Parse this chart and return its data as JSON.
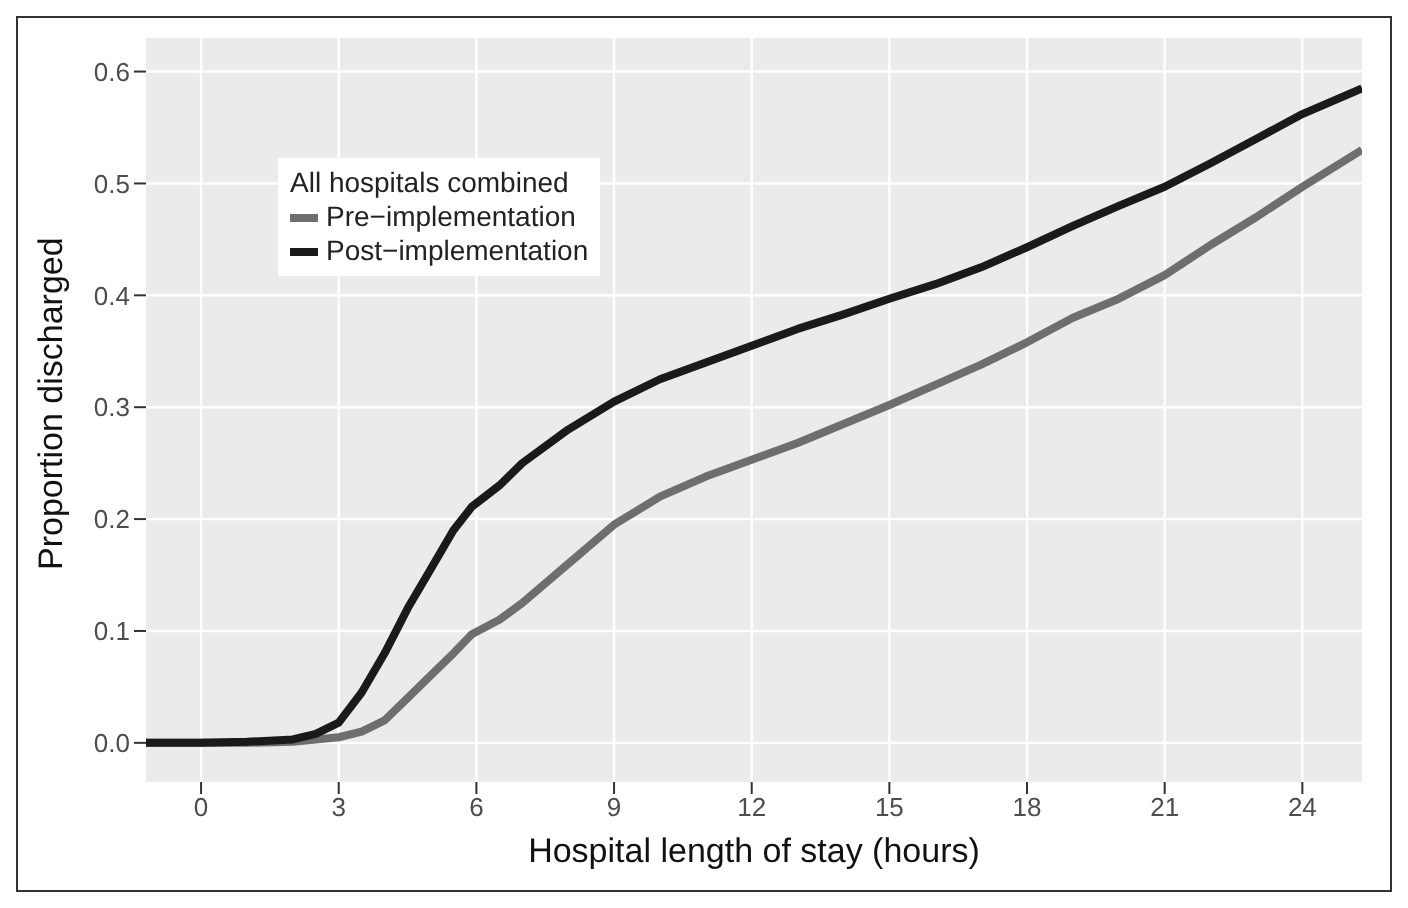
{
  "chart_data": {
    "type": "line",
    "xlabel": "Hospital length of stay (hours)",
    "ylabel": "Proportion discharged",
    "legend_title": "All hospitals combined",
    "legend": "top left",
    "grid": true,
    "marker": "none",
    "line_style": "solid",
    "xlim": [
      -1.2,
      25.3
    ],
    "xticks": [
      0,
      3,
      6,
      9,
      12,
      15,
      18,
      21,
      24
    ],
    "ylim": [
      -0.035,
      0.63
    ],
    "yticks": [
      {
        "value": 0,
        "label": "0.0"
      },
      {
        "value": 0.1,
        "label": "0.1"
      },
      {
        "value": 0.2,
        "label": "0.2"
      },
      {
        "value": 0.3,
        "label": "0.3"
      },
      {
        "value": 0.4,
        "label": "0.4"
      },
      {
        "value": 0.5,
        "label": "0.5"
      },
      {
        "value": 0.6,
        "label": "0.6"
      }
    ],
    "series": [
      {
        "name": "Pre−implementation",
        "color": "#6e6e6e",
        "x": [
          -1.2,
          0,
          1,
          2,
          3,
          3.5,
          4,
          4.5,
          5,
          5.5,
          5.9,
          6.5,
          7,
          8,
          9,
          10,
          11,
          12,
          13,
          14,
          15,
          16,
          17,
          18,
          19,
          20,
          21,
          22,
          23,
          24,
          25.3
        ],
        "values": [
          0,
          0,
          0,
          0.001,
          0.005,
          0.01,
          0.02,
          0.04,
          0.06,
          0.08,
          0.097,
          0.11,
          0.125,
          0.16,
          0.195,
          0.22,
          0.238,
          0.253,
          0.268,
          0.285,
          0.302,
          0.32,
          0.338,
          0.358,
          0.38,
          0.397,
          0.418,
          0.445,
          0.47,
          0.497,
          0.53
        ]
      },
      {
        "name": "Post−implementation",
        "color": "#1a1a1a",
        "x": [
          -1.2,
          0,
          1,
          2,
          2.5,
          3,
          3.5,
          4,
          4.5,
          5,
          5.5,
          5.9,
          6.5,
          7,
          8,
          9,
          10,
          11,
          12,
          13,
          14,
          15,
          16,
          17,
          18,
          19,
          20,
          21,
          22,
          23,
          24,
          25.3
        ],
        "values": [
          0,
          0,
          0.001,
          0.003,
          0.008,
          0.018,
          0.045,
          0.08,
          0.12,
          0.155,
          0.19,
          0.211,
          0.23,
          0.25,
          0.28,
          0.305,
          0.325,
          0.34,
          0.355,
          0.37,
          0.383,
          0.397,
          0.41,
          0.425,
          0.443,
          0.462,
          0.48,
          0.497,
          0.518,
          0.54,
          0.562,
          0.585
        ]
      }
    ]
  }
}
